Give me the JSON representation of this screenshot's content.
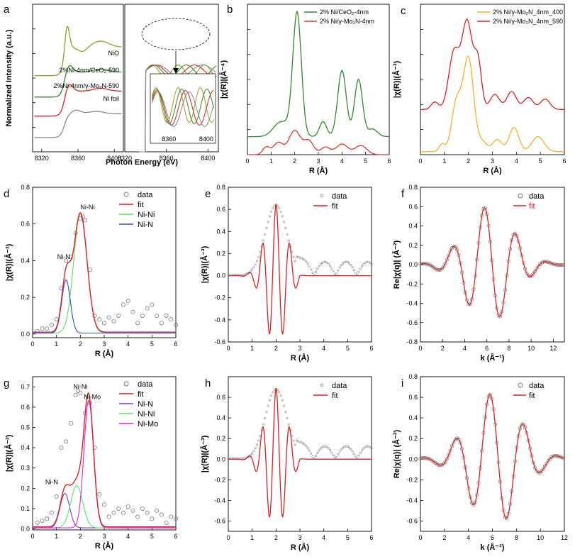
{
  "figure": {
    "panels_layout": "3 rows of three panels"
  },
  "chart_data": [
    {
      "id": "a",
      "type": "line",
      "label": "a",
      "xlabel": "Photon Energy (eV)",
      "ylabel": "Normalized Intensity (a.u.)",
      "xlim": [
        8310,
        8410
      ],
      "ylim": [
        0,
        6.2
      ],
      "xticks": [
        "8320",
        "8360",
        "8400"
      ],
      "inset_xticks": [
        "8360",
        "8400"
      ],
      "curves": [
        {
          "name": "NiO",
          "color": "#9b9b1e",
          "kind": "nio",
          "offset": 3.2
        },
        {
          "name": "2%Ni-4nm/CeO₂-590",
          "color": "#2e8b2e",
          "kind": "ni",
          "offset": 2.3
        },
        {
          "name": "2%Ni-4nm/γ-Mo₂N-590",
          "color": "#e02020",
          "kind": "ni",
          "offset": 1.5
        },
        {
          "name": "Ni foil",
          "color": "#8a8a8a",
          "kind": "foil",
          "offset": 0.6
        }
      ]
    },
    {
      "id": "b",
      "type": "line",
      "label": "b",
      "xlabel": "R (Å)",
      "ylabel": "|χ(R)|(Å⁻⁴)",
      "xlim": [
        0,
        6
      ],
      "ylim": [
        0,
        1.0
      ],
      "xticks": [
        "0",
        "1",
        "2",
        "3",
        "4",
        "5",
        "6"
      ],
      "series": [
        {
          "name": "2% Ni/CeO₂-4nm",
          "color": "#2e8b2e",
          "baseline": 0.12,
          "peaks": [
            [
              1.2,
              0.25,
              0.04
            ],
            [
              1.55,
              0.28,
              0.08
            ],
            [
              2.1,
              0.18,
              0.82
            ],
            [
              3.2,
              0.15,
              0.1
            ],
            [
              4.0,
              0.18,
              0.44
            ],
            [
              4.7,
              0.17,
              0.38
            ],
            [
              5.3,
              0.2,
              0.05
            ]
          ]
        },
        {
          "name": "2% Ni/γ-Mo₂N-4nm",
          "color": "#e83030",
          "baseline": 0.0,
          "peaks": [
            [
              0.8,
              0.15,
              0.05
            ],
            [
              1.3,
              0.2,
              0.08
            ],
            [
              2.0,
              0.25,
              0.16
            ],
            [
              2.6,
              0.2,
              0.09
            ],
            [
              3.3,
              0.2,
              0.05
            ],
            [
              4.0,
              0.25,
              0.07
            ],
            [
              4.8,
              0.25,
              0.06
            ]
          ]
        }
      ]
    },
    {
      "id": "c",
      "type": "line",
      "label": "c",
      "xlabel": "R (Å)",
      "ylabel": "|χ(R)|(Å⁻³)",
      "xlim": [
        0,
        6
      ],
      "ylim": [
        0,
        1.0
      ],
      "xticks": [
        "0",
        "1",
        "2",
        "3",
        "4",
        "5",
        "6"
      ],
      "series": [
        {
          "name": "2% Ni/γ-Mo₂N_4nm_400",
          "color": "#f0b429",
          "baseline": 0.02,
          "peaks": [
            [
              0.9,
              0.12,
              0.05
            ],
            [
              1.5,
              0.2,
              0.32
            ],
            [
              2.0,
              0.22,
              0.62
            ],
            [
              2.6,
              0.18,
              0.06
            ],
            [
              3.2,
              0.2,
              0.08
            ],
            [
              3.9,
              0.2,
              0.16
            ],
            [
              4.9,
              0.25,
              0.1
            ]
          ]
        },
        {
          "name": "2% Ni/γ-Mo₂N_4nm_590",
          "color": "#e02020",
          "baseline": 0.3,
          "peaks": [
            [
              0.6,
              0.15,
              0.05
            ],
            [
              1.4,
              0.22,
              0.38
            ],
            [
              1.95,
              0.22,
              0.58
            ],
            [
              2.4,
              0.15,
              0.3
            ],
            [
              3.1,
              0.2,
              0.1
            ],
            [
              3.8,
              0.2,
              0.12
            ],
            [
              4.5,
              0.2,
              0.08
            ],
            [
              5.2,
              0.2,
              0.07
            ]
          ]
        }
      ]
    },
    {
      "id": "d",
      "type": "line",
      "label": "d",
      "xlabel": "R (Å)",
      "ylabel": "|χ(R)|(Å⁻³)",
      "xlim": [
        0,
        6
      ],
      "ylim": [
        -0.02,
        0.8
      ],
      "xticks": [
        "0",
        "1",
        "2",
        "3",
        "4",
        "5",
        "6"
      ],
      "yticks": [
        "0.0",
        "0.2",
        "0.4",
        "0.6",
        "0.8"
      ],
      "legend": [
        "data",
        "fit",
        "Ni-Ni",
        "Ni-N"
      ],
      "colors": {
        "data": "#7a7a7a",
        "fit": "#e02020",
        "c1": "#5ce65c",
        "c2": "#2a4ce6"
      },
      "components": [
        {
          "name": "Ni-Ni",
          "center": 2.0,
          "width": 0.28,
          "height": 0.65
        },
        {
          "name": "Ni-N",
          "center": 1.4,
          "width": 0.18,
          "height": 0.29
        }
      ],
      "annotations": [
        {
          "text": "Ni-N",
          "x": 1.3,
          "y": 0.41
        },
        {
          "text": "Ni-Ni",
          "x": 2.3,
          "y": 0.68
        }
      ],
      "data_points": [
        [
          0.2,
          0.015
        ],
        [
          0.4,
          0.03
        ],
        [
          0.6,
          0.03
        ],
        [
          0.8,
          0.05
        ],
        [
          1.0,
          0.08
        ],
        [
          1.2,
          0.25
        ],
        [
          1.4,
          0.4
        ],
        [
          1.6,
          0.42
        ],
        [
          1.8,
          0.55
        ],
        [
          2.0,
          0.63
        ],
        [
          2.1,
          0.64
        ],
        [
          2.2,
          0.62
        ],
        [
          2.4,
          0.35
        ],
        [
          2.6,
          0.1
        ],
        [
          2.8,
          0.08
        ],
        [
          3.0,
          0.06
        ],
        [
          3.2,
          0.09
        ],
        [
          3.4,
          0.07
        ],
        [
          3.6,
          0.1
        ],
        [
          3.8,
          0.16
        ],
        [
          4.0,
          0.18
        ],
        [
          4.2,
          0.12
        ],
        [
          4.4,
          0.06
        ],
        [
          4.6,
          0.1
        ],
        [
          4.8,
          0.14
        ],
        [
          5.0,
          0.16
        ],
        [
          5.2,
          0.1
        ],
        [
          5.4,
          0.06
        ],
        [
          5.6,
          0.1
        ],
        [
          5.8,
          0.08
        ],
        [
          6.0,
          0.05
        ]
      ]
    },
    {
      "id": "e",
      "type": "line",
      "label": "e",
      "xlabel": "R (Å)",
      "ylabel": "|χ(R)|(Å⁻³)",
      "xlim": [
        0,
        6
      ],
      "ylim": [
        -0.6,
        0.8
      ],
      "xticks": [
        "0",
        "1",
        "2",
        "3",
        "4",
        "5",
        "6"
      ],
      "yticks": [
        "-0.6",
        "-0.4",
        "-0.2",
        "0.0",
        "0.2",
        "0.4",
        "0.6",
        "0.8"
      ],
      "legend": [
        "data",
        "fit"
      ],
      "colors": {
        "data": "#9a9a9a",
        "fit": "#e02020"
      },
      "envelope_peak": 0.64,
      "fit_min": -0.53
    },
    {
      "id": "f",
      "type": "line",
      "label": "f",
      "xlabel": "k (Å⁻¹)",
      "ylabel": "Re|χ(q)| (Å⁻²)",
      "xlim": [
        0,
        13
      ],
      "ylim": [
        -0.8,
        0.8
      ],
      "xticks": [
        "0",
        "2",
        "4",
        "6",
        "8",
        "10",
        "12"
      ],
      "yticks": [
        "-0.8",
        "-0.6",
        "-0.4",
        "-0.2",
        "0.0",
        "0.2",
        "0.4",
        "0.6",
        "0.8"
      ],
      "legend": [
        "data",
        "fit"
      ],
      "colors": {
        "data": "#7a7a7a",
        "fit": "#e02020"
      },
      "peak_amplitude": 0.6
    },
    {
      "id": "g",
      "type": "line",
      "label": "g",
      "xlabel": "R (Å)",
      "ylabel": "|χ(R)|(Å⁻³)",
      "xlim": [
        0,
        6
      ],
      "ylim": [
        -0.005,
        0.75
      ],
      "xticks": [
        "0",
        "1",
        "2",
        "3",
        "4",
        "5",
        "6"
      ],
      "yticks": [
        "0.0",
        "0.1",
        "0.2",
        "0.3",
        "0.4",
        "0.5",
        "0.6",
        "0.7"
      ],
      "legend": [
        "data",
        "fit",
        "Ni-N",
        "Ni-Ni",
        "Ni-Mo"
      ],
      "colors": {
        "data": "#7a7a7a",
        "fit": "#e02020",
        "c1": "#8a2be2",
        "c2": "#5ce65c",
        "c3": "#e020e0"
      },
      "components": [
        {
          "name": "Ni-N",
          "center": 1.35,
          "width": 0.2,
          "height": 0.17
        },
        {
          "name": "Ni-Ni",
          "center": 1.85,
          "width": 0.25,
          "height": 0.21
        },
        {
          "name": "Ni-Mo",
          "center": 2.35,
          "width": 0.2,
          "height": 0.63
        }
      ],
      "annotations": [
        {
          "text": "Ni-N",
          "x": 0.8,
          "y": 0.22
        },
        {
          "text": "Ni-Ni",
          "x": 2.0,
          "y": 0.69
        },
        {
          "text": "Ni-Mo",
          "x": 2.5,
          "y": 0.64
        }
      ],
      "data_points": [
        [
          0.2,
          0.03
        ],
        [
          0.4,
          0.04
        ],
        [
          0.6,
          0.05
        ],
        [
          0.8,
          0.08
        ],
        [
          1.0,
          0.16
        ],
        [
          1.2,
          0.4
        ],
        [
          1.4,
          0.43
        ],
        [
          1.6,
          0.52
        ],
        [
          1.8,
          0.66
        ],
        [
          1.9,
          0.68
        ],
        [
          2.0,
          0.67
        ],
        [
          2.2,
          0.57
        ],
        [
          2.4,
          0.62
        ],
        [
          2.6,
          0.4
        ],
        [
          2.8,
          0.17
        ],
        [
          3.0,
          0.12
        ],
        [
          3.2,
          0.06
        ],
        [
          3.4,
          0.08
        ],
        [
          3.6,
          0.1
        ],
        [
          3.8,
          0.08
        ],
        [
          4.0,
          0.11
        ],
        [
          4.2,
          0.09
        ],
        [
          4.4,
          0.06
        ],
        [
          4.6,
          0.1
        ],
        [
          4.8,
          0.08
        ],
        [
          5.0,
          0.05
        ],
        [
          5.2,
          0.09
        ],
        [
          5.4,
          0.07
        ],
        [
          5.6,
          0.03
        ],
        [
          5.8,
          0.06
        ],
        [
          6.0,
          0.05
        ]
      ]
    },
    {
      "id": "h",
      "type": "line",
      "label": "h",
      "xlabel": "R (Å)",
      "ylabel": "|χ(R)|(Å⁻³)",
      "xlim": [
        0,
        6
      ],
      "ylim": [
        -0.7,
        0.8
      ],
      "xticks": [
        "0",
        "1",
        "2",
        "3",
        "4",
        "5",
        "6"
      ],
      "yticks": [
        "-0.6",
        "-0.4",
        "-0.2",
        "0.0",
        "0.2",
        "0.4",
        "0.6"
      ],
      "legend": [
        "data",
        "fit"
      ],
      "colors": {
        "data": "#9a9a9a",
        "fit": "#e02020"
      },
      "envelope_peak": 0.68,
      "fit_min": -0.58
    },
    {
      "id": "i",
      "type": "line",
      "label": "i",
      "xlabel": "k (Å⁻¹)",
      "ylabel": "Re|χ(q)| (Å⁻²)",
      "xlim": [
        0,
        12
      ],
      "ylim": [
        -0.7,
        0.8
      ],
      "xticks": [
        "0",
        "2",
        "4",
        "6",
        "8",
        "10",
        "12"
      ],
      "yticks": [
        "-0.6",
        "-0.4",
        "-0.2",
        "0.0",
        "0.2",
        "0.4",
        "0.6",
        "0.8"
      ],
      "legend": [
        "data",
        "fit"
      ],
      "colors": {
        "data": "#7a7a7a",
        "fit": "#e02020"
      },
      "peak_amplitude": 0.64
    }
  ]
}
